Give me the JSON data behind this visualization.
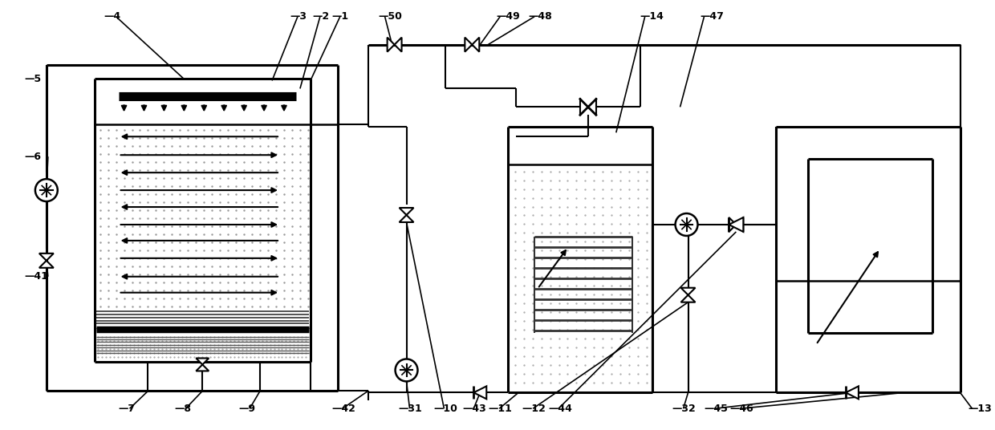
{
  "bg": "#ffffff",
  "lc": "#000000",
  "lw": 1.5,
  "tlw": 2.2,
  "fs": 9,
  "dot_color": "#888888",
  "dense_dot_color": "#555555"
}
